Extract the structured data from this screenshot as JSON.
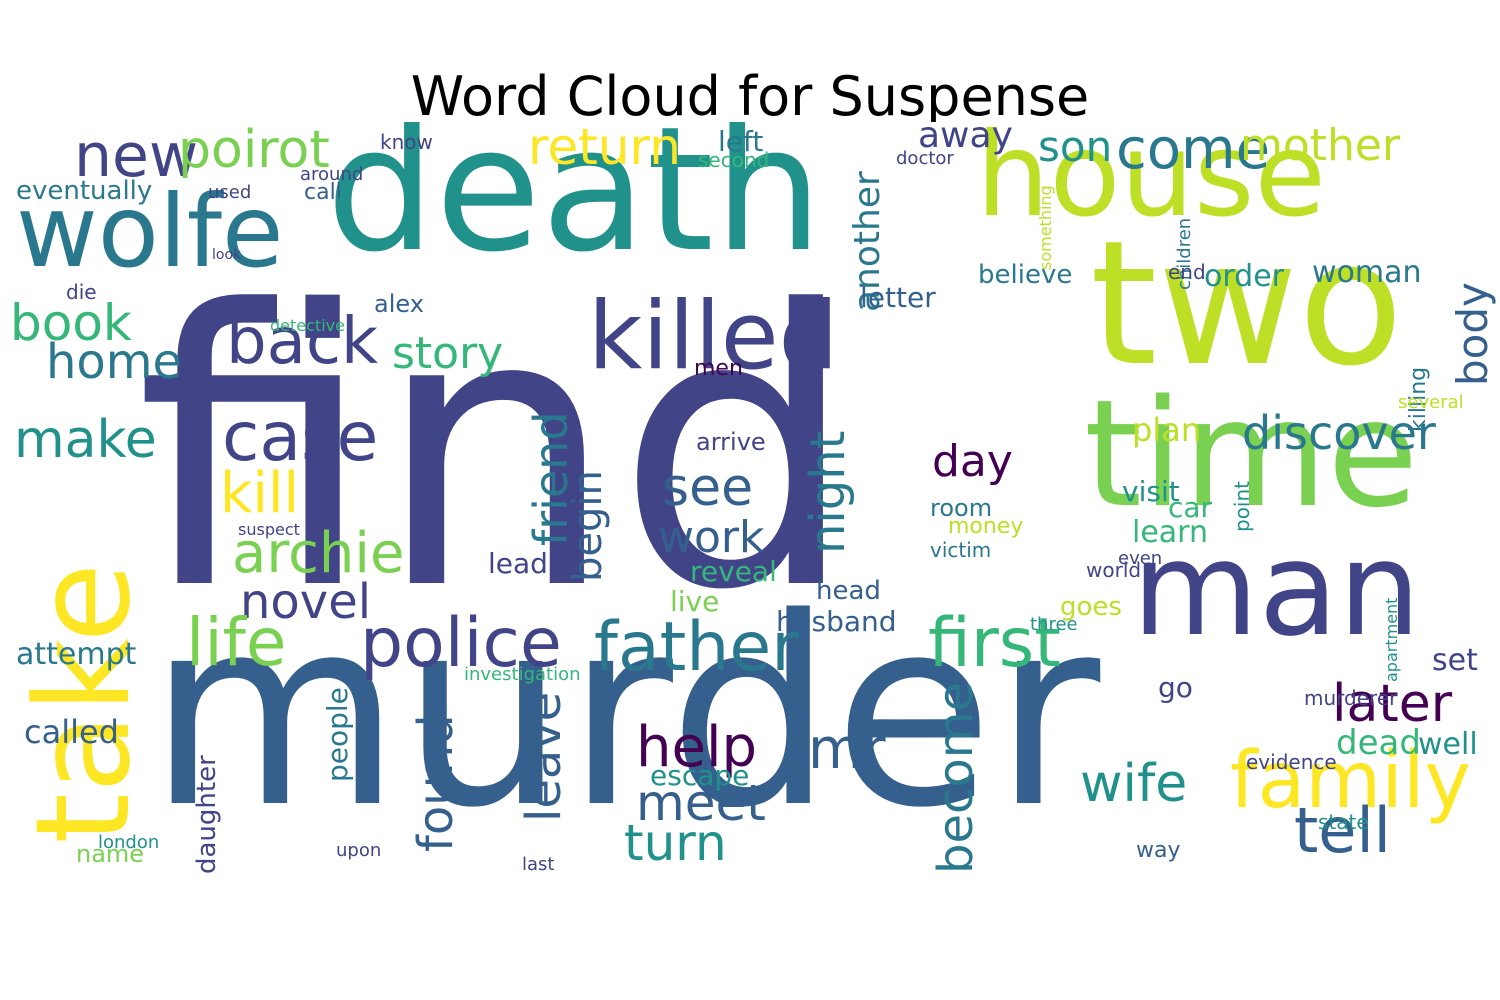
{
  "title": "Word Cloud for Suspense",
  "palette": {
    "dark_purple": "#440154",
    "indigo": "#414487",
    "blue": "#355f8d",
    "teal": "#21918c",
    "green_teal": "#2a788e",
    "green": "#35b779",
    "light_green": "#7ad151",
    "yellow_green": "#bddf26",
    "yellow": "#fde725"
  },
  "words": [
    {
      "text": "find",
      "color": "#414487"
    },
    {
      "text": "murder",
      "color": "#355f8d"
    },
    {
      "text": "death",
      "color": "#21918c"
    },
    {
      "text": "house",
      "color": "#bddf26"
    },
    {
      "text": "two",
      "color": "#bddf26"
    },
    {
      "text": "time",
      "color": "#7ad151"
    },
    {
      "text": "take",
      "color": "#fde725"
    },
    {
      "text": "man",
      "color": "#414487"
    },
    {
      "text": "wolfe",
      "color": "#2a788e"
    },
    {
      "text": "killed",
      "color": "#414487"
    },
    {
      "text": "family",
      "color": "#fde725"
    },
    {
      "text": "police",
      "color": "#414487"
    },
    {
      "text": "father",
      "color": "#2a788e"
    },
    {
      "text": "first",
      "color": "#35b779"
    },
    {
      "text": "back",
      "color": "#414487"
    },
    {
      "text": "new",
      "color": "#414487"
    },
    {
      "text": "poirot",
      "color": "#7ad151"
    },
    {
      "text": "return",
      "color": "#fde725"
    },
    {
      "text": "come",
      "color": "#2a788e"
    },
    {
      "text": "mother",
      "color": "#bddf26"
    },
    {
      "text": "son",
      "color": "#21918c"
    },
    {
      "text": "book",
      "color": "#35b779"
    },
    {
      "text": "home",
      "color": "#2a788e"
    },
    {
      "text": "make",
      "color": "#21918c"
    },
    {
      "text": "case",
      "color": "#414487"
    },
    {
      "text": "kill",
      "color": "#fde725"
    },
    {
      "text": "archie",
      "color": "#7ad151"
    },
    {
      "text": "story",
      "color": "#35b779"
    },
    {
      "text": "novel",
      "color": "#414487"
    },
    {
      "text": "life",
      "color": "#7ad151"
    },
    {
      "text": "friend",
      "color": "#2a788e"
    },
    {
      "text": "night",
      "color": "#2a788e"
    },
    {
      "text": "another",
      "color": "#2a788e"
    },
    {
      "text": "see",
      "color": "#355f8d"
    },
    {
      "text": "work",
      "color": "#355f8d"
    },
    {
      "text": "begin",
      "color": "#355f8d"
    },
    {
      "text": "found",
      "color": "#355f8d"
    },
    {
      "text": "leave",
      "color": "#355f8d"
    },
    {
      "text": "help",
      "color": "#440154"
    },
    {
      "text": "meet",
      "color": "#355f8d"
    },
    {
      "text": "turn",
      "color": "#21918c"
    },
    {
      "text": "mr",
      "color": "#355f8d"
    },
    {
      "text": "escape",
      "color": "#21918c"
    },
    {
      "text": "become",
      "color": "#2a788e"
    },
    {
      "text": "day",
      "color": "#440154"
    },
    {
      "text": "wife",
      "color": "#21918c"
    },
    {
      "text": "tell",
      "color": "#355f8d"
    },
    {
      "text": "later",
      "color": "#440154"
    },
    {
      "text": "discover",
      "color": "#2a788e"
    },
    {
      "text": "woman",
      "color": "#2a788e"
    },
    {
      "text": "order",
      "color": "#21918c"
    },
    {
      "text": "body",
      "color": "#355f8d"
    },
    {
      "text": "believe",
      "color": "#2a788e"
    },
    {
      "text": "letter",
      "color": "#355f8d"
    },
    {
      "text": "away",
      "color": "#414487"
    },
    {
      "text": "left",
      "color": "#2a788e"
    },
    {
      "text": "second",
      "color": "#35b779"
    },
    {
      "text": "dead",
      "color": "#35b779"
    },
    {
      "text": "well",
      "color": "#21918c"
    },
    {
      "text": "set",
      "color": "#414487"
    },
    {
      "text": "go",
      "color": "#414487"
    },
    {
      "text": "plan",
      "color": "#bddf26"
    },
    {
      "text": "visit",
      "color": "#21918c"
    },
    {
      "text": "car",
      "color": "#35b779"
    },
    {
      "text": "learn",
      "color": "#35b779"
    },
    {
      "text": "attempt",
      "color": "#2a788e"
    },
    {
      "text": "called",
      "color": "#355f8d"
    },
    {
      "text": "name",
      "color": "#7ad151"
    },
    {
      "text": "london",
      "color": "#21918c"
    },
    {
      "text": "people",
      "color": "#2a788e"
    },
    {
      "text": "daughter",
      "color": "#414487"
    },
    {
      "text": "lead",
      "color": "#414487"
    },
    {
      "text": "live",
      "color": "#7ad151"
    },
    {
      "text": "reveal",
      "color": "#35b779"
    },
    {
      "text": "arrive",
      "color": "#414487"
    },
    {
      "text": "husband",
      "color": "#355f8d"
    },
    {
      "text": "head",
      "color": "#355f8d"
    },
    {
      "text": "money",
      "color": "#bddf26"
    },
    {
      "text": "room",
      "color": "#2a788e"
    },
    {
      "text": "victim",
      "color": "#2a788e"
    },
    {
      "text": "investigation",
      "color": "#35b779"
    },
    {
      "text": "eventually",
      "color": "#2a788e"
    },
    {
      "text": "alex",
      "color": "#355f8d"
    },
    {
      "text": "know",
      "color": "#414487"
    },
    {
      "text": "call",
      "color": "#355f8d"
    },
    {
      "text": "around",
      "color": "#414487"
    },
    {
      "text": "detective",
      "color": "#35b779"
    },
    {
      "text": "goes",
      "color": "#bddf26"
    },
    {
      "text": "world",
      "color": "#414487"
    },
    {
      "text": "men",
      "color": "#440154"
    },
    {
      "text": "used",
      "color": "#414487"
    },
    {
      "text": "die",
      "color": "#414487"
    },
    {
      "text": "doctor",
      "color": "#414487"
    },
    {
      "text": "children",
      "color": "#2a788e"
    },
    {
      "text": "killing",
      "color": "#2a788e"
    },
    {
      "text": "point",
      "color": "#21918c"
    },
    {
      "text": "even",
      "color": "#414487"
    },
    {
      "text": "three",
      "color": "#21918c"
    },
    {
      "text": "something",
      "color": "#bddf26"
    },
    {
      "text": "end",
      "color": "#414487"
    },
    {
      "text": "suspect",
      "color": "#414487"
    },
    {
      "text": "state",
      "color": "#21918c"
    },
    {
      "text": "way",
      "color": "#355f8d"
    },
    {
      "text": "apartment",
      "color": "#21918c"
    },
    {
      "text": "murderer",
      "color": "#414487"
    },
    {
      "text": "upon",
      "color": "#414487"
    },
    {
      "text": "evidence",
      "color": "#414487"
    },
    {
      "text": "several",
      "color": "#bddf26"
    },
    {
      "text": "last",
      "color": "#414487"
    },
    {
      "text": "look",
      "color": "#414487"
    }
  ]
}
